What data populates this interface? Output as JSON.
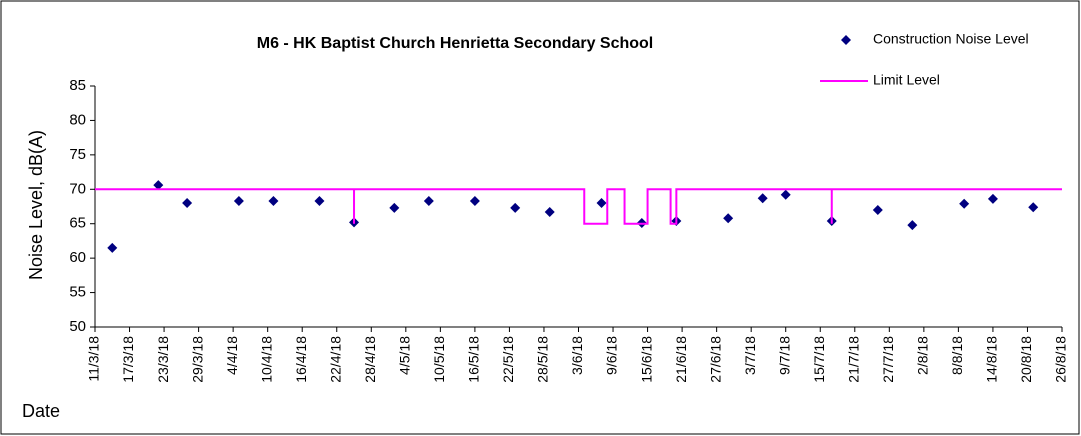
{
  "chart_data": {
    "type": "scatter",
    "title": "M6 - HK Baptist Church Henrietta Secondary School",
    "y_label": "Noise Level, dB(A)",
    "x_label": "Date",
    "xlim": [
      "11/3/18",
      "26/8/18"
    ],
    "xticks": [
      "11/3/18",
      "17/3/18",
      "23/3/18",
      "29/3/18",
      "4/4/18",
      "10/4/18",
      "16/4/18",
      "22/4/18",
      "28/4/18",
      "4/5/18",
      "10/5/18",
      "16/5/18",
      "22/5/18",
      "28/5/18",
      "3/6/18",
      "9/6/18",
      "15/6/18",
      "21/6/18",
      "27/6/18",
      "3/7/18",
      "9/7/18",
      "15/7/18",
      "21/7/18",
      "27/7/18",
      "2/8/18",
      "8/8/18",
      "14/8/18",
      "20/8/18",
      "26/8/18"
    ],
    "ylim": [
      50,
      85
    ],
    "yticks": [
      50,
      55,
      60,
      65,
      70,
      75,
      80,
      85
    ],
    "grid": false,
    "legend": "top-right",
    "series": [
      {
        "name": "Construction Noise Level",
        "type": "scatter",
        "color": "#000080",
        "x": [
          "14/3/18",
          "22/3/18",
          "27/3/18",
          "5/4/18",
          "11/4/18",
          "19/4/18",
          "25/4/18",
          "2/5/18",
          "8/5/18",
          "16/5/18",
          "23/5/18",
          "29/5/18",
          "7/6/18",
          "14/6/18",
          "20/6/18",
          "29/6/18",
          "5/7/18",
          "9/7/18",
          "17/7/18",
          "25/7/18",
          "31/7/18",
          "9/8/18",
          "14/8/18",
          "21/8/18"
        ],
        "values": [
          61.5,
          70.6,
          68.0,
          68.3,
          68.3,
          68.3,
          65.2,
          67.3,
          68.3,
          68.3,
          67.3,
          66.7,
          68.0,
          65.1,
          65.4,
          65.8,
          68.7,
          69.2,
          65.4,
          67.0,
          64.8,
          67.9,
          68.6,
          67.4
        ]
      },
      {
        "name": "Limit Level",
        "type": "line",
        "color": "#ff00ff",
        "x": [
          "11/3/18",
          "25/4/18",
          "25/4/18",
          "25/4/18",
          "4/6/18",
          "4/6/18",
          "8/6/18",
          "8/6/18",
          "11/6/18",
          "11/6/18",
          "15/6/18",
          "15/6/18",
          "19/6/18",
          "19/6/18",
          "20/6/18",
          "20/6/18",
          "17/7/18",
          "17/7/18",
          "17/7/18",
          "26/8/18"
        ],
        "values": [
          70,
          70,
          65,
          70,
          70,
          65,
          65,
          70,
          70,
          65,
          65,
          70,
          70,
          65,
          65,
          70,
          70,
          65,
          70,
          70
        ]
      }
    ]
  }
}
